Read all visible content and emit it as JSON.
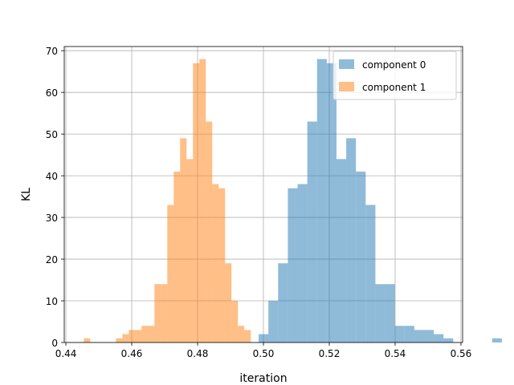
{
  "chart_data": {
    "type": "bar",
    "subtype": "overlaid-histogram",
    "xlabel": "iteration",
    "ylabel": "KL",
    "xlim": [
      0.4395,
      0.5605
    ],
    "ylim": [
      0,
      71
    ],
    "x_ticks": [
      "0.44",
      "0.46",
      "0.48",
      "0.50",
      "0.52",
      "0.54",
      "0.56"
    ],
    "x_tick_values": [
      0.44,
      0.46,
      0.48,
      0.5,
      0.52,
      0.54,
      0.56
    ],
    "y_ticks": [
      "0",
      "10",
      "20",
      "30",
      "40",
      "50",
      "60",
      "70"
    ],
    "y_tick_values": [
      0,
      10,
      20,
      30,
      40,
      50,
      60,
      70
    ],
    "grid": true,
    "legend_position": "top-right",
    "bar_opacity": 0.5,
    "series": [
      {
        "name": "component 0",
        "color": "#1f77b4",
        "bin_start": 0.4956,
        "bin_width": 0.002955,
        "counts": [
          0,
          2,
          10,
          19,
          37,
          38,
          53,
          68,
          67,
          44,
          49,
          41,
          33,
          14,
          14,
          4,
          4,
          3,
          3,
          2,
          1,
          0,
          0,
          0,
          0,
          1
        ]
      },
      {
        "name": "component 1",
        "color": "#ff7f0e",
        "bin_start": 0.44545,
        "bin_width": 0.00195,
        "counts": [
          1,
          0,
          0,
          0,
          0,
          1,
          2,
          3,
          3,
          4,
          4,
          14,
          14,
          33,
          41,
          49,
          44,
          67,
          68,
          53,
          38,
          37,
          19,
          10,
          4,
          3
        ]
      }
    ]
  }
}
